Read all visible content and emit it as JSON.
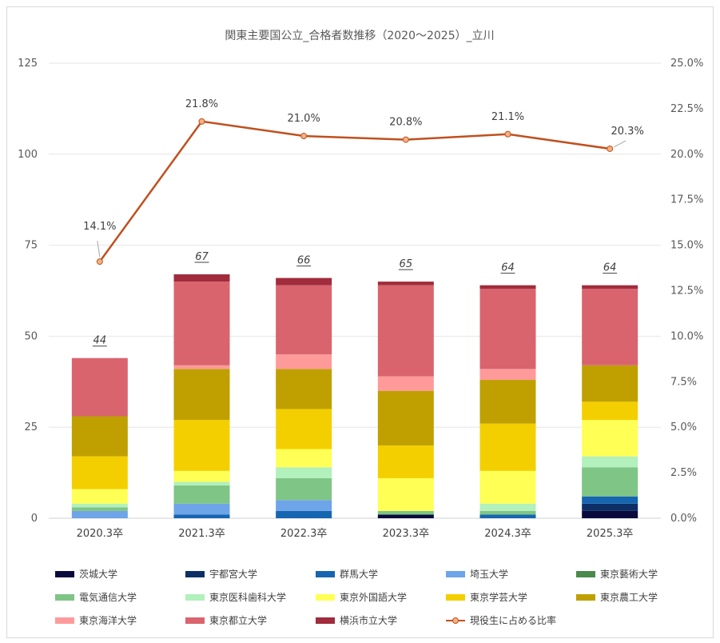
{
  "chart_data": {
    "type": "bar",
    "stacked": true,
    "title": "関東主要国公立_合格者数推移（2020～2025）_立川",
    "categories": [
      "2020.3卒",
      "2021.3卒",
      "2022.3卒",
      "2023.3卒",
      "2024.3卒",
      "2025.3卒"
    ],
    "y_left": {
      "ylim": [
        0,
        125
      ],
      "ticks": [
        "0",
        "25",
        "50",
        "75",
        "100",
        "125"
      ]
    },
    "y_right": {
      "ylim": [
        0,
        25
      ],
      "ticks": [
        "0.0%",
        "2.5%",
        "5.0%",
        "7.5%",
        "10.0%",
        "12.5%",
        "15.0%",
        "17.5%",
        "20.0%",
        "22.5%",
        "25.0%"
      ]
    },
    "totals": [
      "44",
      "67",
      "66",
      "65",
      "64",
      "64"
    ],
    "series": [
      {
        "name": "茨城大学",
        "color": "#0a0a3c",
        "values": [
          0,
          0,
          0,
          1,
          0,
          2
        ]
      },
      {
        "name": "宇都宮大学",
        "color": "#0d2f66",
        "values": [
          0,
          0,
          0,
          0,
          0,
          2
        ]
      },
      {
        "name": "群馬大学",
        "color": "#1565b0",
        "values": [
          0,
          1,
          2,
          0,
          1,
          2
        ]
      },
      {
        "name": "埼玉大学",
        "color": "#6ea4e8",
        "values": [
          2,
          3,
          3,
          0,
          0,
          0
        ]
      },
      {
        "name": "東京藝術大学",
        "color": "#4a8a4a",
        "values": [
          0,
          0,
          0,
          0,
          0,
          0
        ]
      },
      {
        "name": "電気通信大学",
        "color": "#7fc585",
        "values": [
          1,
          5,
          6,
          1,
          1,
          8
        ]
      },
      {
        "name": "東京医科歯科大学",
        "color": "#b2f0bc",
        "values": [
          1,
          1,
          3,
          0,
          2,
          3
        ]
      },
      {
        "name": "東京外国語大学",
        "color": "#ffff55",
        "values": [
          4,
          3,
          5,
          9,
          9,
          10
        ]
      },
      {
        "name": "東京学芸大学",
        "color": "#f4cf00",
        "values": [
          9,
          14,
          11,
          9,
          13,
          5
        ]
      },
      {
        "name": "東京農工大学",
        "color": "#bfa000",
        "values": [
          11,
          14,
          11,
          15,
          12,
          10
        ]
      },
      {
        "name": "東京海洋大学",
        "color": "#ff9a9a",
        "values": [
          0,
          1,
          4,
          4,
          3,
          0
        ]
      },
      {
        "name": "東京都立大学",
        "color": "#d9646e",
        "values": [
          16,
          23,
          19,
          25,
          22,
          21
        ]
      },
      {
        "name": "横浜市立大学",
        "color": "#a02c3c",
        "values": [
          0,
          2,
          2,
          1,
          1,
          1
        ]
      }
    ],
    "line": {
      "name": "現役生に占める比率",
      "color": "#c0501e",
      "marker_fill": "#f4b183",
      "axis": "right",
      "values": [
        14.1,
        21.8,
        21.0,
        20.8,
        21.1,
        20.3
      ],
      "labels": [
        "14.1%",
        "21.8%",
        "21.0%",
        "20.8%",
        "21.1%",
        "20.3%"
      ]
    }
  }
}
